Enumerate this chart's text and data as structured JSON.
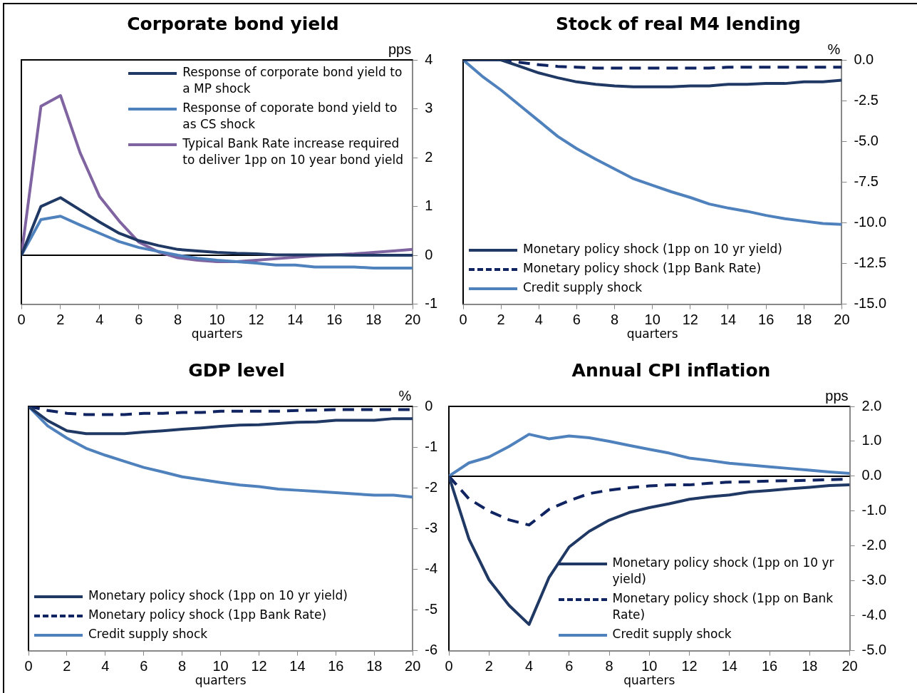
{
  "chart_data": [
    {
      "type": "line",
      "title": "Corporate bond yield",
      "ylabel": "pps",
      "xlabel": "quarters",
      "x": [
        0,
        1,
        2,
        3,
        4,
        5,
        6,
        7,
        8,
        9,
        10,
        11,
        12,
        13,
        14,
        15,
        16,
        17,
        18,
        19,
        20
      ],
      "xlim": [
        0,
        20
      ],
      "xticks": [
        0,
        2,
        4,
        6,
        8,
        10,
        12,
        14,
        16,
        18,
        20
      ],
      "ylim": [
        -1,
        4
      ],
      "yticks": [
        -1,
        0,
        1,
        2,
        3,
        4
      ],
      "legend": "top right",
      "series": [
        {
          "name": "Response of corporate bond yield to a MP shock",
          "color": "#1f3864",
          "values": [
            0,
            1.0,
            1.18,
            0.93,
            0.68,
            0.45,
            0.3,
            0.2,
            0.12,
            0.09,
            0.06,
            0.04,
            0.03,
            0.01,
            0.01,
            0.01,
            0.01,
            0,
            0,
            0,
            0
          ]
        },
        {
          "name": "Response of coporate bond yield to as CS shock",
          "color": "#4f81bd",
          "values": [
            0,
            0.73,
            0.8,
            0.62,
            0.45,
            0.28,
            0.16,
            0.08,
            0,
            -0.06,
            -0.1,
            -0.13,
            -0.16,
            -0.2,
            -0.2,
            -0.24,
            -0.24,
            -0.24,
            -0.26,
            -0.26,
            -0.26
          ]
        },
        {
          "name": "Typical Bank Rate increase required to deliver 1pp on 10 year bond yield",
          "color": "#8064a2",
          "values": [
            0,
            3.05,
            3.27,
            2.1,
            1.2,
            0.7,
            0.27,
            0.07,
            -0.05,
            -0.1,
            -0.13,
            -0.13,
            -0.1,
            -0.07,
            -0.04,
            -0.01,
            0.01,
            0.03,
            0.06,
            0.09,
            0.12
          ]
        }
      ]
    },
    {
      "type": "line",
      "title": "Stock of real M4 lending",
      "ylabel": "%",
      "xlabel": "quarters",
      "x": [
        0,
        1,
        2,
        3,
        4,
        5,
        6,
        7,
        8,
        9,
        10,
        11,
        12,
        13,
        14,
        15,
        16,
        17,
        18,
        19,
        20
      ],
      "xlim": [
        0,
        20
      ],
      "xticks": [
        0,
        2,
        4,
        6,
        8,
        10,
        12,
        14,
        16,
        18,
        20
      ],
      "ylim": [
        -15,
        0
      ],
      "yticks": [
        {
          "value": -15,
          "label": "-15.0"
        },
        {
          "value": -12.5,
          "label": "-12.5"
        },
        {
          "value": -10,
          "label": "-10.0"
        },
        {
          "value": -7.5,
          "label": "-7.5"
        },
        {
          "value": -5,
          "label": "-5.0"
        },
        {
          "value": -2.5,
          "label": "-2.5"
        },
        {
          "value": 0,
          "label": "0.0"
        }
      ],
      "legend": "bottom left",
      "series": [
        {
          "name": "Monetary policy shock (1pp on 10 yr yield)",
          "color": "#1f3864",
          "values": [
            0,
            0,
            0,
            -0.4,
            -0.8,
            -1.1,
            -1.35,
            -1.5,
            -1.6,
            -1.65,
            -1.65,
            -1.65,
            -1.6,
            -1.6,
            -1.5,
            -1.5,
            -1.45,
            -1.45,
            -1.35,
            -1.35,
            -1.25
          ]
        },
        {
          "name": "Monetary policy shock (1pp Bank Rate)",
          "color": "#0f2460",
          "line_style": "dashed",
          "values": [
            0,
            0,
            0,
            -0.15,
            -0.3,
            -0.4,
            -0.45,
            -0.5,
            -0.5,
            -0.5,
            -0.5,
            -0.5,
            -0.5,
            -0.5,
            -0.45,
            -0.45,
            -0.45,
            -0.45,
            -0.45,
            -0.45,
            -0.45
          ]
        },
        {
          "name": "Credit supply shock",
          "color": "#4f81bd",
          "values": [
            0,
            -1.0,
            -1.85,
            -2.8,
            -3.75,
            -4.7,
            -5.45,
            -6.1,
            -6.7,
            -7.3,
            -7.7,
            -8.1,
            -8.45,
            -8.85,
            -9.1,
            -9.3,
            -9.55,
            -9.75,
            -9.9,
            -10.05,
            -10.1
          ]
        }
      ]
    },
    {
      "type": "line",
      "title": "GDP level",
      "ylabel": "%",
      "xlabel": "quarters",
      "x": [
        0,
        1,
        2,
        3,
        4,
        5,
        6,
        7,
        8,
        9,
        10,
        11,
        12,
        13,
        14,
        15,
        16,
        17,
        18,
        19,
        20
      ],
      "xlim": [
        0,
        20
      ],
      "xticks": [
        0,
        2,
        4,
        6,
        8,
        10,
        12,
        14,
        16,
        18,
        20
      ],
      "ylim": [
        -6,
        0
      ],
      "yticks": [
        -6,
        -5,
        -4,
        -3,
        -2,
        -1,
        0
      ],
      "legend": "bottom left",
      "series": [
        {
          "name": "Monetary policy shock (1pp on 10 yr yield)",
          "color": "#1f3864",
          "values": [
            0,
            -0.35,
            -0.6,
            -0.67,
            -0.67,
            -0.67,
            -0.63,
            -0.6,
            -0.56,
            -0.53,
            -0.49,
            -0.46,
            -0.45,
            -0.42,
            -0.39,
            -0.38,
            -0.34,
            -0.34,
            -0.34,
            -0.3,
            -0.3
          ]
        },
        {
          "name": "Monetary policy shock (1pp Bank Rate)",
          "color": "#0f2460",
          "line_style": "dashed",
          "values": [
            0,
            -0.1,
            -0.17,
            -0.2,
            -0.2,
            -0.2,
            -0.17,
            -0.17,
            -0.15,
            -0.15,
            -0.12,
            -0.12,
            -0.12,
            -0.12,
            -0.1,
            -0.09,
            -0.08,
            -0.08,
            -0.08,
            -0.08,
            -0.08
          ]
        },
        {
          "name": "Credit supply shock",
          "color": "#4f81bd",
          "values": [
            0,
            -0.48,
            -0.78,
            -1.03,
            -1.2,
            -1.35,
            -1.5,
            -1.61,
            -1.73,
            -1.8,
            -1.87,
            -1.93,
            -1.97,
            -2.03,
            -2.06,
            -2.09,
            -2.12,
            -2.15,
            -2.18,
            -2.18,
            -2.23
          ]
        }
      ]
    },
    {
      "type": "line",
      "title": "Annual CPI inflation",
      "ylabel": "pps",
      "xlabel": "quarters",
      "x": [
        0,
        1,
        2,
        3,
        4,
        5,
        6,
        7,
        8,
        9,
        10,
        11,
        12,
        13,
        14,
        15,
        16,
        17,
        18,
        19,
        20
      ],
      "xlim": [
        0,
        20
      ],
      "xticks": [
        0,
        2,
        4,
        6,
        8,
        10,
        12,
        14,
        16,
        18,
        20
      ],
      "ylim": [
        -5,
        2
      ],
      "yticks": [
        {
          "value": -5,
          "label": "-5.0"
        },
        {
          "value": -4,
          "label": "-4.0"
        },
        {
          "value": -3,
          "label": "-3.0"
        },
        {
          "value": -2,
          "label": "-2.0"
        },
        {
          "value": -1,
          "label": "-1.0"
        },
        {
          "value": 0,
          "label": "0.0"
        },
        {
          "value": 1,
          "label": "1.0"
        },
        {
          "value": 2,
          "label": "2.0"
        }
      ],
      "legend": "bottom right",
      "series": [
        {
          "name": "Monetary policy shock (1pp on 10 yr yield)",
          "color": "#1f3864",
          "values": [
            0,
            -1.8,
            -2.97,
            -3.7,
            -4.25,
            -2.9,
            -2.03,
            -1.58,
            -1.26,
            -1.04,
            -0.9,
            -0.79,
            -0.66,
            -0.59,
            -0.54,
            -0.45,
            -0.41,
            -0.36,
            -0.32,
            -0.27,
            -0.25
          ]
        },
        {
          "name": "Monetary policy shock (1pp on Bank Rate)",
          "color": "#0f2460",
          "line_style": "dashed",
          "values": [
            0,
            -0.65,
            -1.0,
            -1.25,
            -1.4,
            -0.95,
            -0.7,
            -0.5,
            -0.4,
            -0.33,
            -0.28,
            -0.25,
            -0.25,
            -0.2,
            -0.17,
            -0.16,
            -0.14,
            -0.13,
            -0.12,
            -0.1,
            -0.08
          ]
        },
        {
          "name": "Credit supply shock",
          "color": "#4f81bd",
          "values": [
            0,
            0.38,
            0.55,
            0.85,
            1.2,
            1.07,
            1.15,
            1.1,
            1.0,
            0.88,
            0.77,
            0.66,
            0.52,
            0.45,
            0.37,
            0.32,
            0.27,
            0.22,
            0.17,
            0.12,
            0.08
          ]
        }
      ]
    }
  ]
}
